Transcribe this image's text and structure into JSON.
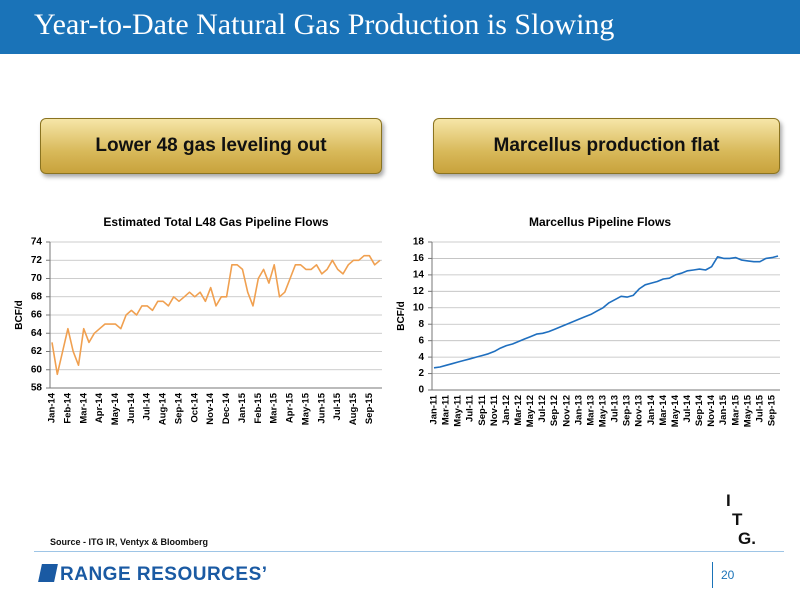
{
  "slide": {
    "title": "Year-to-Date Natural Gas Production is Slowing",
    "callouts": [
      "Lower 48 gas leveling out",
      "Marcellus production flat"
    ],
    "source": "Source - ITG IR, Ventyx & Bloomberg",
    "logo": "RANGE RESOURCES’",
    "page_number": "20",
    "itg_logo": [
      "I",
      "T",
      "G."
    ]
  },
  "chart_data": [
    {
      "type": "line",
      "title": "Estimated Total L48 Gas Pipeline Flows",
      "y_label": "BCF/d",
      "color": "#f0a050",
      "grid": true,
      "ylim": [
        58,
        74
      ],
      "yticks": [
        58,
        60,
        62,
        64,
        66,
        68,
        70,
        72,
        74
      ],
      "categories": [
        "Jan-14",
        null,
        null,
        "Feb-14",
        null,
        null,
        "Mar-14",
        null,
        null,
        "Apr-14",
        null,
        null,
        "May-14",
        null,
        null,
        "Jun-14",
        null,
        null,
        "Jul-14",
        null,
        null,
        "Aug-14",
        null,
        null,
        "Sep-14",
        null,
        null,
        "Oct-14",
        null,
        null,
        "Nov-14",
        null,
        null,
        "Dec-14",
        null,
        null,
        "Jan-15",
        null,
        null,
        "Feb-15",
        null,
        null,
        "Mar-15",
        null,
        null,
        "Apr-15",
        null,
        null,
        "May-15",
        null,
        null,
        "Jun-15",
        null,
        null,
        "Jul-15",
        null,
        null,
        "Aug-15",
        null,
        null,
        "Sep-15",
        null,
        null
      ],
      "values": [
        63,
        59.5,
        62,
        64.5,
        62,
        60.5,
        64.5,
        63,
        64,
        64.5,
        65,
        65,
        65,
        64.5,
        66,
        66.5,
        66,
        67,
        67,
        66.5,
        67.5,
        67.5,
        67,
        68,
        67.5,
        68,
        68.5,
        68,
        68.5,
        67.5,
        69,
        67,
        68,
        68,
        71.5,
        71.5,
        71,
        68.5,
        67,
        70,
        71,
        69.5,
        71.5,
        68,
        68.5,
        70,
        71.5,
        71.5,
        71,
        71,
        71.5,
        70.5,
        71,
        72,
        71,
        70.5,
        71.5,
        72,
        72,
        72.5,
        72.5,
        71.5,
        72
      ]
    },
    {
      "type": "line",
      "title": "Marcellus Pipeline Flows",
      "y_label": "BCF/d",
      "color": "#1f6fbf",
      "grid": true,
      "ylim": [
        0,
        18
      ],
      "yticks": [
        0,
        2,
        4,
        6,
        8,
        10,
        12,
        14,
        16,
        18
      ],
      "categories": [
        "Jan-11",
        null,
        "Mar-11",
        null,
        "May-11",
        null,
        "Jul-11",
        null,
        "Sep-11",
        null,
        "Nov-11",
        null,
        "Jan-12",
        null,
        "Mar-12",
        null,
        "May-12",
        null,
        "Jul-12",
        null,
        "Sep-12",
        null,
        "Nov-12",
        null,
        "Jan-13",
        null,
        "Mar-13",
        null,
        "May-13",
        null,
        "Jul-13",
        null,
        "Sep-13",
        null,
        "Nov-13",
        null,
        "Jan-14",
        null,
        "Mar-14",
        null,
        "May-14",
        null,
        "Jul-14",
        null,
        "Sep-14",
        null,
        "Nov-14",
        null,
        "Jan-15",
        null,
        "Mar-15",
        null,
        "May-15",
        null,
        "Jul-15",
        null,
        "Sep-15",
        null
      ],
      "values": [
        2.7,
        2.8,
        3.0,
        3.2,
        3.4,
        3.6,
        3.8,
        4.0,
        4.2,
        4.4,
        4.7,
        5.1,
        5.4,
        5.6,
        5.9,
        6.2,
        6.5,
        6.8,
        6.9,
        7.1,
        7.4,
        7.7,
        8.0,
        8.3,
        8.6,
        8.9,
        9.2,
        9.6,
        10.0,
        10.6,
        11.0,
        11.4,
        11.3,
        11.5,
        12.3,
        12.8,
        13.0,
        13.2,
        13.5,
        13.6,
        14.0,
        14.2,
        14.5,
        14.6,
        14.7,
        14.6,
        15.0,
        16.2,
        16.0,
        16.0,
        16.1,
        15.8,
        15.7,
        15.6,
        15.6,
        16.0,
        16.1,
        16.3
      ]
    }
  ]
}
